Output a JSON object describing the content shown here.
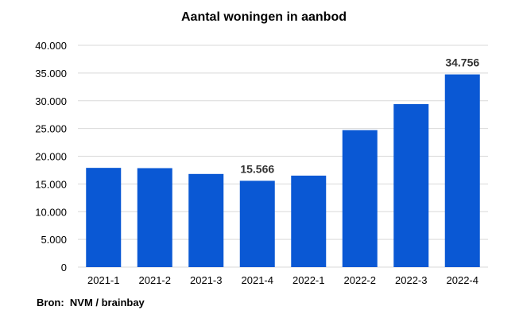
{
  "chart_data": {
    "type": "bar",
    "title": "Aantal woningen in aanbod",
    "categories": [
      "2021-1",
      "2021-2",
      "2021-3",
      "2021-4",
      "2022-1",
      "2022-2",
      "2022-3",
      "2022-4"
    ],
    "values": [
      17900,
      17850,
      16800,
      15566,
      16500,
      24700,
      29400,
      34756
    ],
    "data_labels": [
      {
        "index": 3,
        "text": "15.566"
      },
      {
        "index": 7,
        "text": "34.756"
      }
    ],
    "ylim": [
      0,
      40000
    ],
    "yticks": [
      0,
      5000,
      10000,
      15000,
      20000,
      25000,
      30000,
      35000,
      40000
    ],
    "ytick_labels": [
      "0",
      "5.000",
      "10.000",
      "15.000",
      "20.000",
      "25.000",
      "30.000",
      "35.000",
      "40.000"
    ],
    "grid": true,
    "bar_color": "#0a58d4",
    "grid_color": "#d9d9d9",
    "xlabel": "",
    "ylabel": ""
  },
  "source": "Bron:  NVM / brainbay"
}
